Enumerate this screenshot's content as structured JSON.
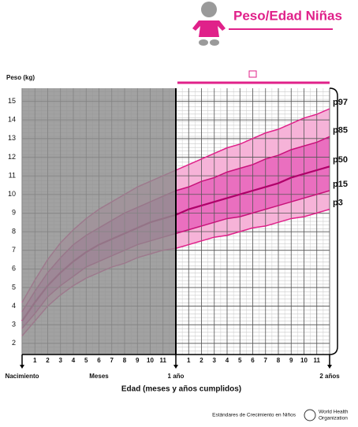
{
  "chart_data": {
    "type": "line",
    "title": "Peso/Edad Niñas",
    "ylabel": "Peso (kg)",
    "xlabel": "Edad  (meses y años cumplidos)",
    "annotations": [
      "Meses"
    ],
    "footer": "Estándares de Crecimiento en Niños",
    "organization": [
      "World Health",
      "Organization"
    ],
    "x": [
      0,
      1,
      2,
      3,
      4,
      5,
      6,
      7,
      8,
      9,
      10,
      11,
      12,
      13,
      14,
      15,
      16,
      17,
      18,
      19,
      20,
      21,
      22,
      23,
      24
    ],
    "xlim": [
      0,
      24
    ],
    "xticks": [
      {
        "value": 0,
        "label": "Nacimiento"
      },
      1,
      2,
      3,
      4,
      5,
      6,
      7,
      8,
      9,
      10,
      11,
      {
        "value": 12,
        "label": "1 año"
      },
      {
        "value": 13,
        "label": "1"
      },
      {
        "value": 14,
        "label": "2"
      },
      {
        "value": 15,
        "label": "3"
      },
      {
        "value": 16,
        "label": "4"
      },
      {
        "value": 17,
        "label": "5"
      },
      {
        "value": 18,
        "label": "6"
      },
      {
        "value": 19,
        "label": "7"
      },
      {
        "value": 20,
        "label": "8"
      },
      {
        "value": 21,
        "label": "9"
      },
      {
        "value": 22,
        "label": "10"
      },
      {
        "value": 23,
        "label": "11"
      },
      {
        "value": 24,
        "label": "2 años"
      }
    ],
    "ylim": [
      1.4,
      15.7
    ],
    "yticks": [
      2,
      3,
      4,
      5,
      6,
      7,
      8,
      9,
      10,
      11,
      12,
      13,
      14,
      15
    ],
    "grid": true,
    "series": [
      {
        "name": "p97",
        "color": "#e0218a",
        "values": [
          4.2,
          5.4,
          6.5,
          7.4,
          8.1,
          8.7,
          9.2,
          9.6,
          10.0,
          10.4,
          10.7,
          11.0,
          11.3,
          11.6,
          11.9,
          12.2,
          12.5,
          12.7,
          13.0,
          13.3,
          13.5,
          13.8,
          14.1,
          14.3,
          14.6
        ]
      },
      {
        "name": "p85",
        "color": "#c8127a",
        "values": [
          3.7,
          4.8,
          5.8,
          6.6,
          7.3,
          7.8,
          8.2,
          8.6,
          9.0,
          9.3,
          9.6,
          9.9,
          10.2,
          10.4,
          10.7,
          10.9,
          11.2,
          11.4,
          11.6,
          11.9,
          12.1,
          12.4,
          12.6,
          12.8,
          13.1
        ]
      },
      {
        "name": "p50",
        "color": "#b0006a",
        "values": [
          3.2,
          4.2,
          5.1,
          5.8,
          6.4,
          6.9,
          7.3,
          7.6,
          7.9,
          8.2,
          8.5,
          8.7,
          8.9,
          9.2,
          9.4,
          9.6,
          9.8,
          10.0,
          10.2,
          10.4,
          10.6,
          10.9,
          11.1,
          11.3,
          11.5
        ]
      },
      {
        "name": "p15",
        "color": "#c8127a",
        "values": [
          2.8,
          3.6,
          4.5,
          5.1,
          5.6,
          6.1,
          6.4,
          6.7,
          7.0,
          7.3,
          7.5,
          7.7,
          7.9,
          8.1,
          8.3,
          8.5,
          8.7,
          8.8,
          9.0,
          9.2,
          9.4,
          9.6,
          9.8,
          10.0,
          10.2
        ]
      },
      {
        "name": "p3",
        "color": "#e0218a",
        "values": [
          2.4,
          3.2,
          4.0,
          4.6,
          5.1,
          5.5,
          5.8,
          6.1,
          6.3,
          6.6,
          6.8,
          7.0,
          7.1,
          7.3,
          7.5,
          7.7,
          7.8,
          8.0,
          8.2,
          8.3,
          8.5,
          8.7,
          8.8,
          9.0,
          9.2
        ]
      }
    ]
  }
}
